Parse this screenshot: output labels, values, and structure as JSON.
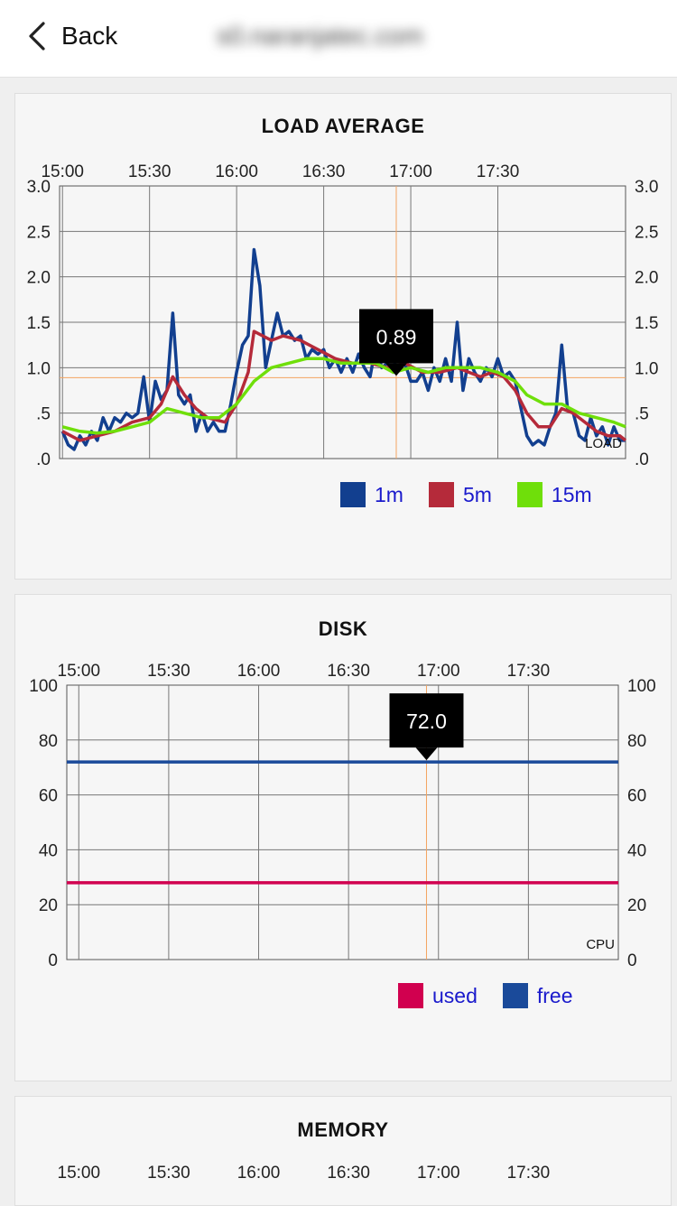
{
  "nav": {
    "back_label": "Back",
    "title": "s0.naranjatec.com"
  },
  "colors": {
    "oneMin": "#123f8f",
    "fiveMin": "#b52a3a",
    "fifteenMin": "#6fdf0a",
    "used": "#d1004f",
    "free": "#1a4a9a",
    "marker": "#f4a460"
  },
  "load": {
    "title": "LOAD AVERAGE",
    "time_labels": [
      "15:00",
      "15:30",
      "16:00",
      "16:30",
      "17:00",
      "17:30"
    ],
    "y_labels": [
      "3.0",
      "2.5",
      "2.0",
      "1.5",
      "1.0",
      ".5",
      ".0"
    ],
    "corner_label": "LOAD",
    "tooltip": "0.89",
    "legend": [
      {
        "label": "1m",
        "color": "#123f8f"
      },
      {
        "label": "5m",
        "color": "#b52a3a"
      },
      {
        "label": "15m",
        "color": "#6fdf0a"
      }
    ]
  },
  "disk": {
    "title": "DISK",
    "time_labels": [
      "15:00",
      "15:30",
      "16:00",
      "16:30",
      "17:00",
      "17:30"
    ],
    "y_labels": [
      "100",
      "80",
      "60",
      "40",
      "20",
      "0"
    ],
    "corner_label": "CPU",
    "tooltip": "72.0",
    "legend": [
      {
        "label": "used",
        "color": "#d1004f"
      },
      {
        "label": "free",
        "color": "#1a4a9a"
      }
    ]
  },
  "memory": {
    "title": "MEMORY",
    "time_labels": [
      "15:00",
      "15:30",
      "16:00",
      "16:30",
      "17:00",
      "17:30"
    ]
  },
  "chart_data": [
    {
      "type": "line",
      "title": "LOAD AVERAGE",
      "xlabel": "",
      "ylabel": "",
      "ylim": [
        0,
        3
      ],
      "x_ticks": [
        "15:00",
        "15:30",
        "16:00",
        "16:30",
        "17:00",
        "17:30"
      ],
      "marker": {
        "time": "16:55",
        "value": 0.89
      },
      "series": [
        {
          "name": "1m",
          "color": "#123f8f",
          "points": [
            [
              "15:00",
              0.3
            ],
            [
              "15:02",
              0.15
            ],
            [
              "15:04",
              0.1
            ],
            [
              "15:06",
              0.25
            ],
            [
              "15:08",
              0.15
            ],
            [
              "15:10",
              0.3
            ],
            [
              "15:12",
              0.2
            ],
            [
              "15:14",
              0.45
            ],
            [
              "15:16",
              0.3
            ],
            [
              "15:18",
              0.45
            ],
            [
              "15:20",
              0.4
            ],
            [
              "15:22",
              0.5
            ],
            [
              "15:24",
              0.45
            ],
            [
              "15:26",
              0.5
            ],
            [
              "15:28",
              0.9
            ],
            [
              "15:30",
              0.4
            ],
            [
              "15:32",
              0.85
            ],
            [
              "15:34",
              0.65
            ],
            [
              "15:36",
              0.75
            ],
            [
              "15:38",
              1.6
            ],
            [
              "15:40",
              0.7
            ],
            [
              "15:42",
              0.6
            ],
            [
              "15:44",
              0.7
            ],
            [
              "15:46",
              0.3
            ],
            [
              "15:48",
              0.5
            ],
            [
              "15:50",
              0.3
            ],
            [
              "15:52",
              0.4
            ],
            [
              "15:54",
              0.3
            ],
            [
              "15:56",
              0.3
            ],
            [
              "15:58",
              0.6
            ],
            [
              "16:00",
              0.95
            ],
            [
              "16:02",
              1.25
            ],
            [
              "16:04",
              1.35
            ],
            [
              "16:06",
              2.3
            ],
            [
              "16:08",
              1.9
            ],
            [
              "16:10",
              1.0
            ],
            [
              "16:12",
              1.3
            ],
            [
              "16:14",
              1.6
            ],
            [
              "16:16",
              1.35
            ],
            [
              "16:18",
              1.4
            ],
            [
              "16:20",
              1.3
            ],
            [
              "16:22",
              1.35
            ],
            [
              "16:24",
              1.1
            ],
            [
              "16:26",
              1.2
            ],
            [
              "16:28",
              1.15
            ],
            [
              "16:30",
              1.2
            ],
            [
              "16:32",
              1.0
            ],
            [
              "16:34",
              1.1
            ],
            [
              "16:36",
              0.95
            ],
            [
              "16:38",
              1.1
            ],
            [
              "16:40",
              0.95
            ],
            [
              "16:42",
              1.15
            ],
            [
              "16:44",
              1.0
            ],
            [
              "16:46",
              0.9
            ],
            [
              "16:48",
              1.25
            ],
            [
              "16:50",
              1.0
            ],
            [
              "16:52",
              1.05
            ],
            [
              "16:54",
              0.95
            ],
            [
              "16:56",
              1.35
            ],
            [
              "16:58",
              1.05
            ],
            [
              "17:00",
              0.85
            ],
            [
              "17:02",
              0.85
            ],
            [
              "17:04",
              0.95
            ],
            [
              "17:06",
              0.75
            ],
            [
              "17:08",
              1.0
            ],
            [
              "17:10",
              0.85
            ],
            [
              "17:12",
              1.1
            ],
            [
              "17:14",
              0.85
            ],
            [
              "17:16",
              1.5
            ],
            [
              "17:18",
              0.75
            ],
            [
              "17:20",
              1.1
            ],
            [
              "17:22",
              0.95
            ],
            [
              "17:24",
              0.85
            ],
            [
              "17:26",
              1.0
            ],
            [
              "17:28",
              0.9
            ],
            [
              "17:30",
              1.1
            ],
            [
              "17:32",
              0.9
            ],
            [
              "17:34",
              0.95
            ],
            [
              "17:36",
              0.85
            ],
            [
              "17:38",
              0.55
            ],
            [
              "17:40",
              0.25
            ],
            [
              "17:42",
              0.15
            ],
            [
              "17:44",
              0.2
            ],
            [
              "17:46",
              0.15
            ],
            [
              "17:48",
              0.35
            ],
            [
              "17:50",
              0.5
            ],
            [
              "17:52",
              1.25
            ],
            [
              "17:54",
              0.55
            ],
            [
              "17:56",
              0.5
            ],
            [
              "17:58",
              0.25
            ],
            [
              "18:00",
              0.2
            ],
            [
              "18:02",
              0.45
            ],
            [
              "18:04",
              0.25
            ],
            [
              "18:06",
              0.35
            ],
            [
              "18:08",
              0.15
            ],
            [
              "18:10",
              0.35
            ],
            [
              "18:12",
              0.2
            ],
            [
              "18:14",
              0.2
            ]
          ]
        },
        {
          "name": "5m",
          "color": "#b52a3a",
          "points": [
            [
              "15:00",
              0.3
            ],
            [
              "15:06",
              0.2
            ],
            [
              "15:12",
              0.25
            ],
            [
              "15:18",
              0.3
            ],
            [
              "15:24",
              0.4
            ],
            [
              "15:30",
              0.45
            ],
            [
              "15:34",
              0.6
            ],
            [
              "15:38",
              0.9
            ],
            [
              "15:42",
              0.7
            ],
            [
              "15:46",
              0.55
            ],
            [
              "15:50",
              0.45
            ],
            [
              "15:56",
              0.4
            ],
            [
              "16:00",
              0.6
            ],
            [
              "16:04",
              0.95
            ],
            [
              "16:06",
              1.4
            ],
            [
              "16:12",
              1.3
            ],
            [
              "16:16",
              1.35
            ],
            [
              "16:22",
              1.3
            ],
            [
              "16:28",
              1.2
            ],
            [
              "16:34",
              1.1
            ],
            [
              "16:40",
              1.05
            ],
            [
              "16:46",
              1.05
            ],
            [
              "16:52",
              1.0
            ],
            [
              "16:58",
              1.05
            ],
            [
              "17:04",
              0.95
            ],
            [
              "17:10",
              0.95
            ],
            [
              "17:16",
              1.0
            ],
            [
              "17:20",
              0.95
            ],
            [
              "17:24",
              0.9
            ],
            [
              "17:28",
              0.95
            ],
            [
              "17:32",
              0.9
            ],
            [
              "17:36",
              0.75
            ],
            [
              "17:40",
              0.5
            ],
            [
              "17:44",
              0.35
            ],
            [
              "17:48",
              0.35
            ],
            [
              "17:52",
              0.55
            ],
            [
              "17:56",
              0.5
            ],
            [
              "18:00",
              0.4
            ],
            [
              "18:04",
              0.3
            ],
            [
              "18:08",
              0.25
            ],
            [
              "18:12",
              0.25
            ],
            [
              "18:14",
              0.2
            ]
          ]
        },
        {
          "name": "15m",
          "color": "#6fdf0a",
          "points": [
            [
              "15:00",
              0.35
            ],
            [
              "15:06",
              0.3
            ],
            [
              "15:12",
              0.28
            ],
            [
              "15:18",
              0.3
            ],
            [
              "15:24",
              0.35
            ],
            [
              "15:30",
              0.4
            ],
            [
              "15:36",
              0.55
            ],
            [
              "15:42",
              0.5
            ],
            [
              "15:48",
              0.45
            ],
            [
              "15:54",
              0.45
            ],
            [
              "16:00",
              0.6
            ],
            [
              "16:06",
              0.85
            ],
            [
              "16:12",
              1.0
            ],
            [
              "16:18",
              1.05
            ],
            [
              "16:24",
              1.1
            ],
            [
              "16:30",
              1.1
            ],
            [
              "16:36",
              1.05
            ],
            [
              "16:42",
              1.05
            ],
            [
              "16:48",
              1.05
            ],
            [
              "16:54",
              0.95
            ],
            [
              "17:00",
              1.0
            ],
            [
              "17:06",
              0.95
            ],
            [
              "17:12",
              1.0
            ],
            [
              "17:18",
              1.0
            ],
            [
              "17:24",
              1.0
            ],
            [
              "17:30",
              0.95
            ],
            [
              "17:36",
              0.85
            ],
            [
              "17:40",
              0.7
            ],
            [
              "17:46",
              0.6
            ],
            [
              "17:52",
              0.6
            ],
            [
              "17:58",
              0.5
            ],
            [
              "18:04",
              0.45
            ],
            [
              "18:10",
              0.4
            ],
            [
              "18:14",
              0.35
            ]
          ]
        }
      ]
    },
    {
      "type": "line",
      "title": "DISK",
      "xlabel": "",
      "ylabel": "",
      "ylim": [
        0,
        100
      ],
      "x_ticks": [
        "15:00",
        "15:30",
        "16:00",
        "16:30",
        "17:00",
        "17:30"
      ],
      "marker": {
        "time": "16:56",
        "value": 72.0
      },
      "series": [
        {
          "name": "used",
          "color": "#d1004f",
          "points": [
            [
              "14:56",
              28.0
            ],
            [
              "18:00",
              28.0
            ]
          ]
        },
        {
          "name": "free",
          "color": "#1a4a9a",
          "points": [
            [
              "14:56",
              72.0
            ],
            [
              "18:00",
              72.0
            ]
          ]
        }
      ]
    }
  ]
}
